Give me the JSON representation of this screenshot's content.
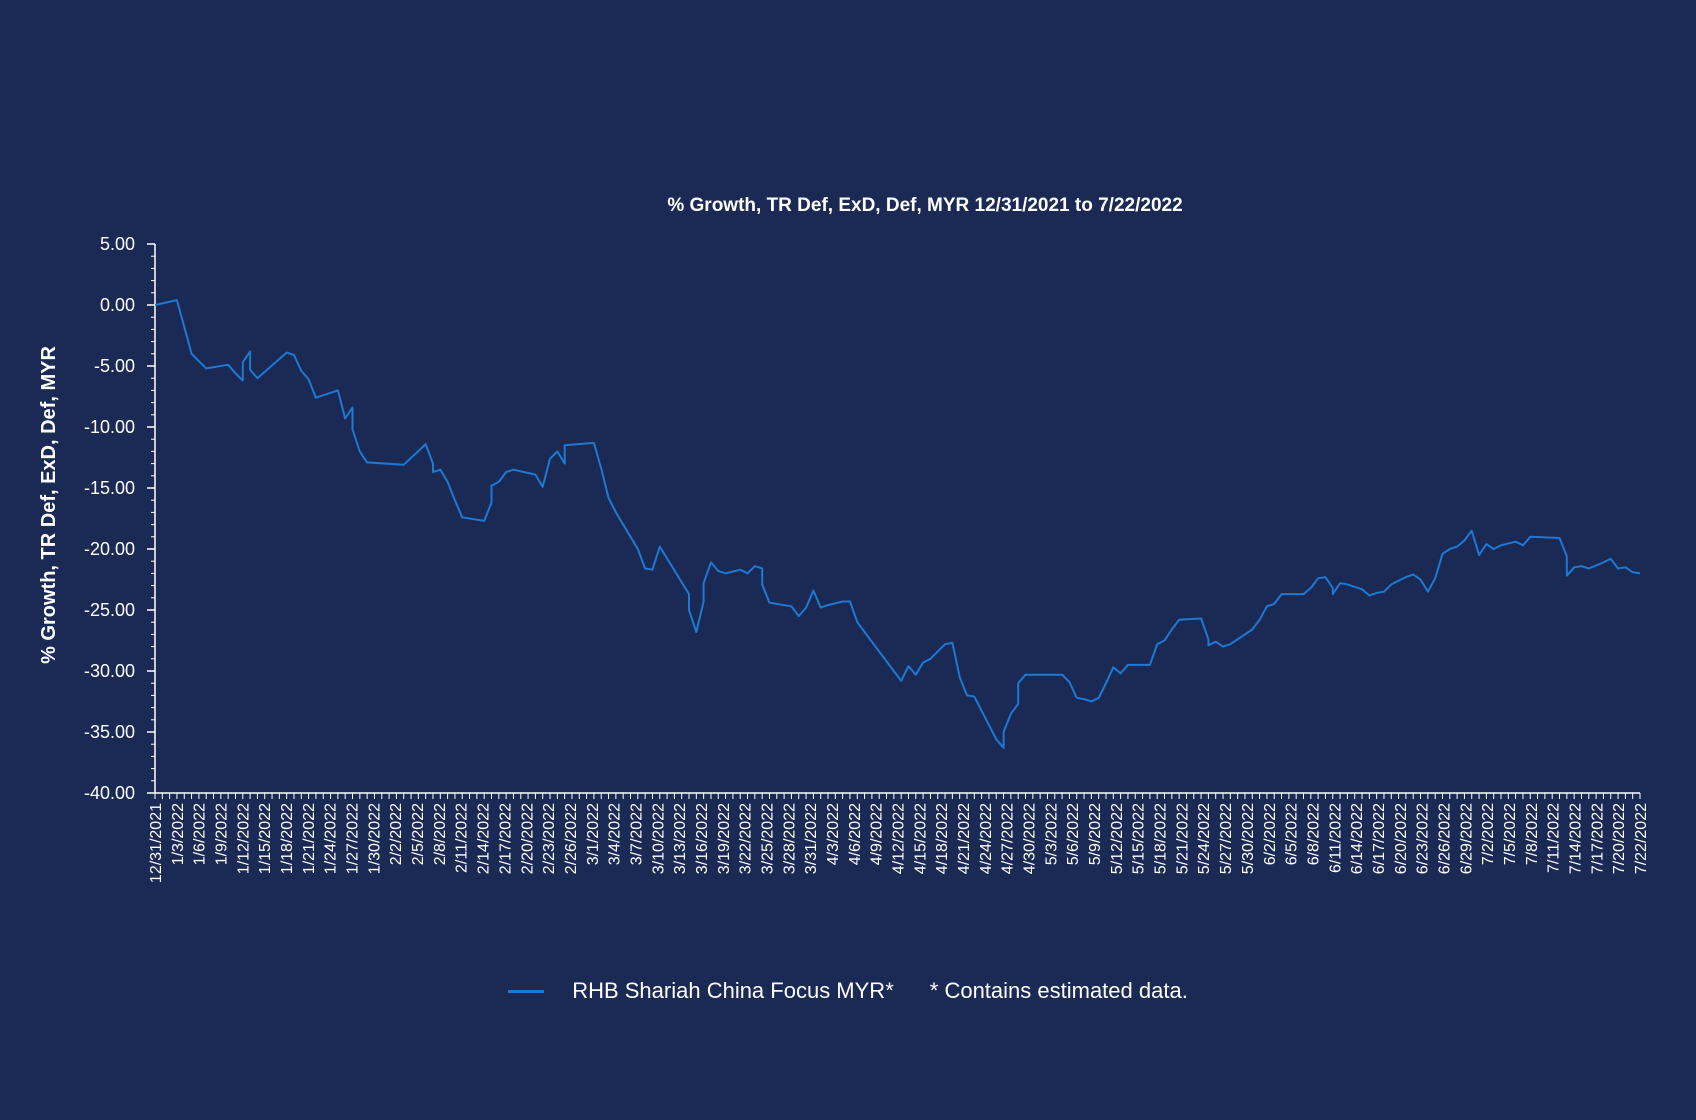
{
  "chart_data": {
    "type": "line",
    "title": "% Growth, TR Def, ExD, Def, MYR 12/31/2021 to 7/22/2022",
    "ylabel": "% Growth, TR Def, ExD, Def, MYR",
    "xlabel": "",
    "ylim": [
      -40,
      5
    ],
    "yticks": [
      5,
      0,
      -5,
      -10,
      -15,
      -20,
      -25,
      -30,
      -35,
      -40
    ],
    "ytick_labels": [
      "5.00",
      "0.00",
      "-5.00",
      "-10.00",
      "-15.00",
      "-20.00",
      "-25.00",
      "-30.00",
      "-35.00",
      "-40.00"
    ],
    "x_start": "2021-12-31",
    "x_end": "2022-07-22",
    "xtick_labels": [
      "12/31/2021",
      "1/3/2022",
      "1/6/2022",
      "1/9/2022",
      "1/12/2022",
      "1/15/2022",
      "1/18/2022",
      "1/21/2022",
      "1/24/2022",
      "1/27/2022",
      "1/30/2022",
      "2/2/2022",
      "2/5/2022",
      "2/8/2022",
      "2/11/2022",
      "2/14/2022",
      "2/17/2022",
      "2/20/2022",
      "2/23/2022",
      "2/26/2022",
      "3/1/2022",
      "3/4/2022",
      "3/7/2022",
      "3/10/2022",
      "3/13/2022",
      "3/16/2022",
      "3/19/2022",
      "3/22/2022",
      "3/25/2022",
      "3/28/2022",
      "3/31/2022",
      "4/3/2022",
      "4/6/2022",
      "4/9/2022",
      "4/12/2022",
      "4/15/2022",
      "4/18/2022",
      "4/21/2022",
      "4/24/2022",
      "4/27/2022",
      "4/30/2022",
      "5/3/2022",
      "5/6/2022",
      "5/9/2022",
      "5/12/2022",
      "5/15/2022",
      "5/18/2022",
      "5/21/2022",
      "5/24/2022",
      "5/27/2022",
      "5/30/2022",
      "6/2/2022",
      "6/5/2022",
      "6/8/2022",
      "6/11/2022",
      "6/14/2022",
      "6/17/2022",
      "6/20/2022",
      "6/23/2022",
      "6/26/2022",
      "6/29/2022",
      "7/2/2022",
      "7/5/2022",
      "7/8/2022",
      "7/11/2022",
      "7/14/2022",
      "7/17/2022",
      "7/20/2022",
      "7/22/2022"
    ],
    "grid": false,
    "legend_position": "bottom",
    "series": [
      {
        "name": "RHB Shariah China Focus MYR*",
        "color": "#1f78d1",
        "points": [
          [
            "2021-12-31",
            0.0
          ],
          [
            "2022-01-03",
            0.4
          ],
          [
            "2022-01-04",
            -1.8
          ],
          [
            "2022-01-05",
            -4.0
          ],
          [
            "2022-01-07",
            -5.2
          ],
          [
            "2022-01-10",
            -4.9
          ],
          [
            "2022-01-11",
            -5.6
          ],
          [
            "2022-01-12",
            -6.2
          ],
          [
            "2022-01-12",
            -4.7
          ],
          [
            "2022-01-13",
            -3.8
          ],
          [
            "2022-01-13",
            -5.3
          ],
          [
            "2022-01-14",
            -6.0
          ],
          [
            "2022-01-18",
            -3.9
          ],
          [
            "2022-01-19",
            -4.1
          ],
          [
            "2022-01-20",
            -5.4
          ],
          [
            "2022-01-21",
            -6.1
          ],
          [
            "2022-01-22",
            -7.6
          ],
          [
            "2022-01-25",
            -7.0
          ],
          [
            "2022-01-26",
            -9.3
          ],
          [
            "2022-01-27",
            -8.4
          ],
          [
            "2022-01-27",
            -10.2
          ],
          [
            "2022-01-28",
            -12.0
          ],
          [
            "2022-01-29",
            -12.9
          ],
          [
            "2022-02-03",
            -13.1
          ],
          [
            "2022-02-06",
            -11.4
          ],
          [
            "2022-02-07",
            -13.0
          ],
          [
            "2022-02-07",
            -13.7
          ],
          [
            "2022-02-08",
            -13.5
          ],
          [
            "2022-02-09",
            -14.5
          ],
          [
            "2022-02-10",
            -16.0
          ],
          [
            "2022-02-11",
            -17.4
          ],
          [
            "2022-02-14",
            -17.7
          ],
          [
            "2022-02-15",
            -16.2
          ],
          [
            "2022-02-15",
            -14.8
          ],
          [
            "2022-02-16",
            -14.5
          ],
          [
            "2022-02-17",
            -13.7
          ],
          [
            "2022-02-18",
            -13.5
          ],
          [
            "2022-02-21",
            -13.9
          ],
          [
            "2022-02-22",
            -14.9
          ],
          [
            "2022-02-23",
            -12.6
          ],
          [
            "2022-02-24",
            -12.0
          ],
          [
            "2022-02-25",
            -13.0
          ],
          [
            "2022-02-25",
            -11.5
          ],
          [
            "2022-03-01",
            -11.3
          ],
          [
            "2022-03-02",
            -13.4
          ],
          [
            "2022-03-03",
            -15.8
          ],
          [
            "2022-03-04",
            -17.0
          ],
          [
            "2022-03-07",
            -20.0
          ],
          [
            "2022-03-08",
            -21.6
          ],
          [
            "2022-03-09",
            -21.7
          ],
          [
            "2022-03-10",
            -19.8
          ],
          [
            "2022-03-14",
            -23.7
          ],
          [
            "2022-03-14",
            -25.0
          ],
          [
            "2022-03-15",
            -26.8
          ],
          [
            "2022-03-16",
            -24.3
          ],
          [
            "2022-03-16",
            -22.8
          ],
          [
            "2022-03-17",
            -21.1
          ],
          [
            "2022-03-18",
            -21.8
          ],
          [
            "2022-03-19",
            -22.0
          ],
          [
            "2022-03-21",
            -21.7
          ],
          [
            "2022-03-22",
            -22.0
          ],
          [
            "2022-03-23",
            -21.4
          ],
          [
            "2022-03-24",
            -21.6
          ],
          [
            "2022-03-24",
            -22.9
          ],
          [
            "2022-03-25",
            -24.4
          ],
          [
            "2022-03-28",
            -24.7
          ],
          [
            "2022-03-29",
            -25.5
          ],
          [
            "2022-03-30",
            -24.8
          ],
          [
            "2022-03-31",
            -23.4
          ],
          [
            "2022-04-01",
            -24.8
          ],
          [
            "2022-04-02",
            -24.6
          ],
          [
            "2022-04-04",
            -24.3
          ],
          [
            "2022-04-05",
            -24.3
          ],
          [
            "2022-04-06",
            -26.0
          ],
          [
            "2022-04-07",
            -26.8
          ],
          [
            "2022-04-11",
            -30.0
          ],
          [
            "2022-04-12",
            -30.8
          ],
          [
            "2022-04-13",
            -29.6
          ],
          [
            "2022-04-14",
            -30.3
          ],
          [
            "2022-04-15",
            -29.3
          ],
          [
            "2022-04-16",
            -29.0
          ],
          [
            "2022-04-18",
            -27.8
          ],
          [
            "2022-04-19",
            -27.7
          ],
          [
            "2022-04-20",
            -30.5
          ],
          [
            "2022-04-21",
            -32.0
          ],
          [
            "2022-04-22",
            -32.1
          ],
          [
            "2022-04-25",
            -35.6
          ],
          [
            "2022-04-26",
            -36.3
          ],
          [
            "2022-04-26",
            -35.0
          ],
          [
            "2022-04-27",
            -33.5
          ],
          [
            "2022-04-28",
            -32.7
          ],
          [
            "2022-04-28",
            -31.0
          ],
          [
            "2022-04-29",
            -30.3
          ],
          [
            "2022-05-04",
            -30.3
          ],
          [
            "2022-05-05",
            -30.9
          ],
          [
            "2022-05-06",
            -32.2
          ],
          [
            "2022-05-07",
            -32.3
          ],
          [
            "2022-05-08",
            -32.5
          ],
          [
            "2022-05-09",
            -32.2
          ],
          [
            "2022-05-10",
            -31.0
          ],
          [
            "2022-05-11",
            -29.7
          ],
          [
            "2022-05-12",
            -30.2
          ],
          [
            "2022-05-13",
            -29.5
          ],
          [
            "2022-05-16",
            -29.5
          ],
          [
            "2022-05-17",
            -27.8
          ],
          [
            "2022-05-18",
            -27.5
          ],
          [
            "2022-05-19",
            -26.6
          ],
          [
            "2022-05-20",
            -25.8
          ],
          [
            "2022-05-23",
            -25.7
          ],
          [
            "2022-05-24",
            -27.4
          ],
          [
            "2022-05-24",
            -27.9
          ],
          [
            "2022-05-25",
            -27.6
          ],
          [
            "2022-05-26",
            -28.0
          ],
          [
            "2022-05-27",
            -27.8
          ],
          [
            "2022-05-30",
            -26.6
          ],
          [
            "2022-05-31",
            -25.8
          ],
          [
            "2022-06-01",
            -24.7
          ],
          [
            "2022-06-02",
            -24.5
          ],
          [
            "2022-06-03",
            -23.7
          ],
          [
            "2022-06-06",
            -23.7
          ],
          [
            "2022-06-07",
            -23.2
          ],
          [
            "2022-06-08",
            -22.4
          ],
          [
            "2022-06-09",
            -22.3
          ],
          [
            "2022-06-10",
            -23.2
          ],
          [
            "2022-06-10",
            -23.7
          ],
          [
            "2022-06-11",
            -22.8
          ],
          [
            "2022-06-12",
            -22.9
          ],
          [
            "2022-06-14",
            -23.3
          ],
          [
            "2022-06-15",
            -23.8
          ],
          [
            "2022-06-16",
            -23.6
          ],
          [
            "2022-06-17",
            -23.5
          ],
          [
            "2022-06-18",
            -22.9
          ],
          [
            "2022-06-20",
            -22.3
          ],
          [
            "2022-06-21",
            -22.1
          ],
          [
            "2022-06-22",
            -22.5
          ],
          [
            "2022-06-23",
            -23.5
          ],
          [
            "2022-06-24",
            -22.4
          ],
          [
            "2022-06-25",
            -20.4
          ],
          [
            "2022-06-26",
            -20.0
          ],
          [
            "2022-06-27",
            -19.8
          ],
          [
            "2022-06-28",
            -19.3
          ],
          [
            "2022-06-29",
            -18.5
          ],
          [
            "2022-06-30",
            -20.5
          ],
          [
            "2022-07-01",
            -19.6
          ],
          [
            "2022-07-02",
            -20.0
          ],
          [
            "2022-07-03",
            -19.7
          ],
          [
            "2022-07-05",
            -19.4
          ],
          [
            "2022-07-06",
            -19.7
          ],
          [
            "2022-07-07",
            -19.0
          ],
          [
            "2022-07-11",
            -19.1
          ],
          [
            "2022-07-12",
            -20.6
          ],
          [
            "2022-07-12",
            -22.2
          ],
          [
            "2022-07-13",
            -21.5
          ],
          [
            "2022-07-14",
            -21.4
          ],
          [
            "2022-07-15",
            -21.6
          ],
          [
            "2022-07-17",
            -21.1
          ],
          [
            "2022-07-18",
            -20.8
          ],
          [
            "2022-07-19",
            -21.6
          ],
          [
            "2022-07-20",
            -21.5
          ],
          [
            "2022-07-21",
            -21.9
          ],
          [
            "2022-07-22",
            -22.0
          ]
        ]
      }
    ],
    "legend_note": "* Contains estimated data."
  }
}
